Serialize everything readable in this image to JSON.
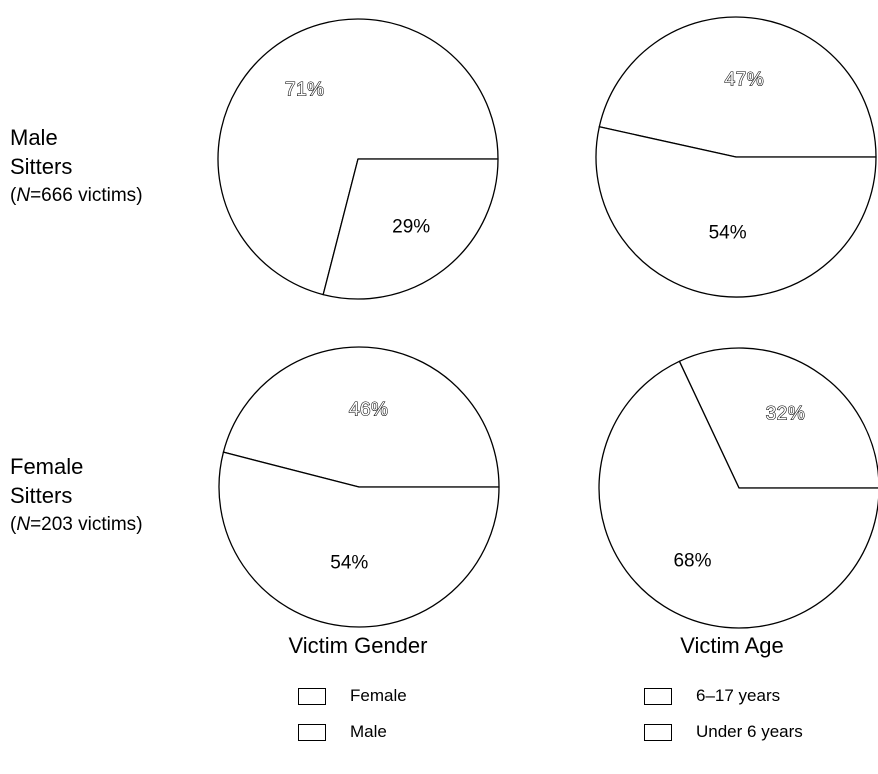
{
  "rows": [
    {
      "label_line1": "Male",
      "label_line2": "Sitters",
      "label_n": "N",
      "label_rest": "=666 victims",
      "label_open": "("
    },
    {
      "label_line1": "Female",
      "label_line2": "Sitters",
      "label_n": "N",
      "label_rest": "=203 victims",
      "label_open": "("
    }
  ],
  "group_titles": {
    "gender": "Victim Gender",
    "age": "Victim Age"
  },
  "legends": {
    "gender": [
      "Female",
      "Male"
    ],
    "age": [
      "6–17 years",
      "Under 6 years"
    ]
  },
  "chart_data": [
    {
      "type": "pie",
      "row": "Male Sitters (N=666 victims)",
      "column": "Victim Gender",
      "slices": [
        {
          "label": "Female",
          "value": 71,
          "text": "71%",
          "outlined": true
        },
        {
          "label": "Male",
          "value": 29,
          "text": "29%",
          "outlined": false
        }
      ]
    },
    {
      "type": "pie",
      "row": "Male Sitters (N=666 victims)",
      "column": "Victim Age",
      "slices": [
        {
          "label": "6–17 years",
          "value": 47,
          "text": "47%",
          "outlined": true
        },
        {
          "label": "Under 6 years",
          "value": 54,
          "text": "54%",
          "outlined": false
        }
      ]
    },
    {
      "type": "pie",
      "row": "Female Sitters (N=203 victims)",
      "column": "Victim Gender",
      "slices": [
        {
          "label": "Female",
          "value": 46,
          "text": "46%",
          "outlined": true
        },
        {
          "label": "Male",
          "value": 54,
          "text": "54%",
          "outlined": false
        }
      ]
    },
    {
      "type": "pie",
      "row": "Female Sitters (N=203 victims)",
      "column": "Victim Age",
      "slices": [
        {
          "label": "6–17 years",
          "value": 32,
          "text": "32%",
          "outlined": true
        },
        {
          "label": "Under 6 years",
          "value": 68,
          "text": "68%",
          "outlined": false
        }
      ]
    }
  ]
}
